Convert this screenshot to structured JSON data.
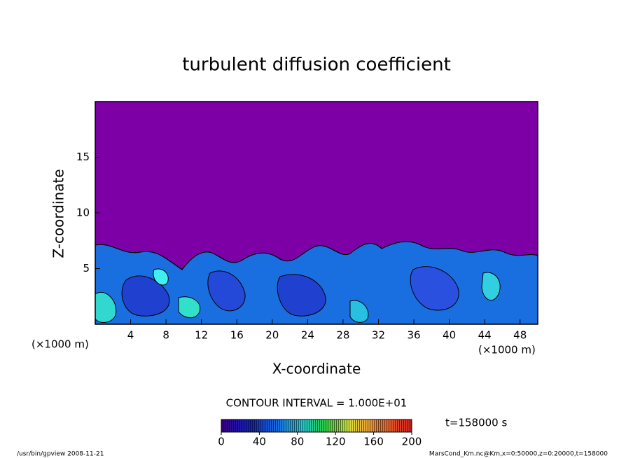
{
  "chart_data": {
    "type": "contour",
    "title": "turbulent diffusion coefficient",
    "xlabel": "X-coordinate",
    "ylabel": "Z-coordinate",
    "unit_label": "(×1000 m)",
    "xlim": [
      0,
      50
    ],
    "ylim": [
      0,
      20
    ],
    "xticks": [
      4,
      8,
      12,
      16,
      20,
      24,
      28,
      32,
      36,
      40,
      44,
      48
    ],
    "yticks": [
      5,
      10,
      15
    ],
    "background_color": "#7d00a6",
    "colorbar": {
      "lim": [
        0,
        200
      ],
      "ticks": [
        0,
        40,
        80,
        120,
        160,
        200
      ]
    },
    "contour_interval": "CONTOUR INTERVAL = 1.000E+01",
    "time_label": "t=158000 s",
    "footer_left": "/usr/bin/gpview  2008-11-21",
    "footer_right": "MarsCond_Km.nc@Km,x=0:50000,z=0:20000,t=158000"
  }
}
